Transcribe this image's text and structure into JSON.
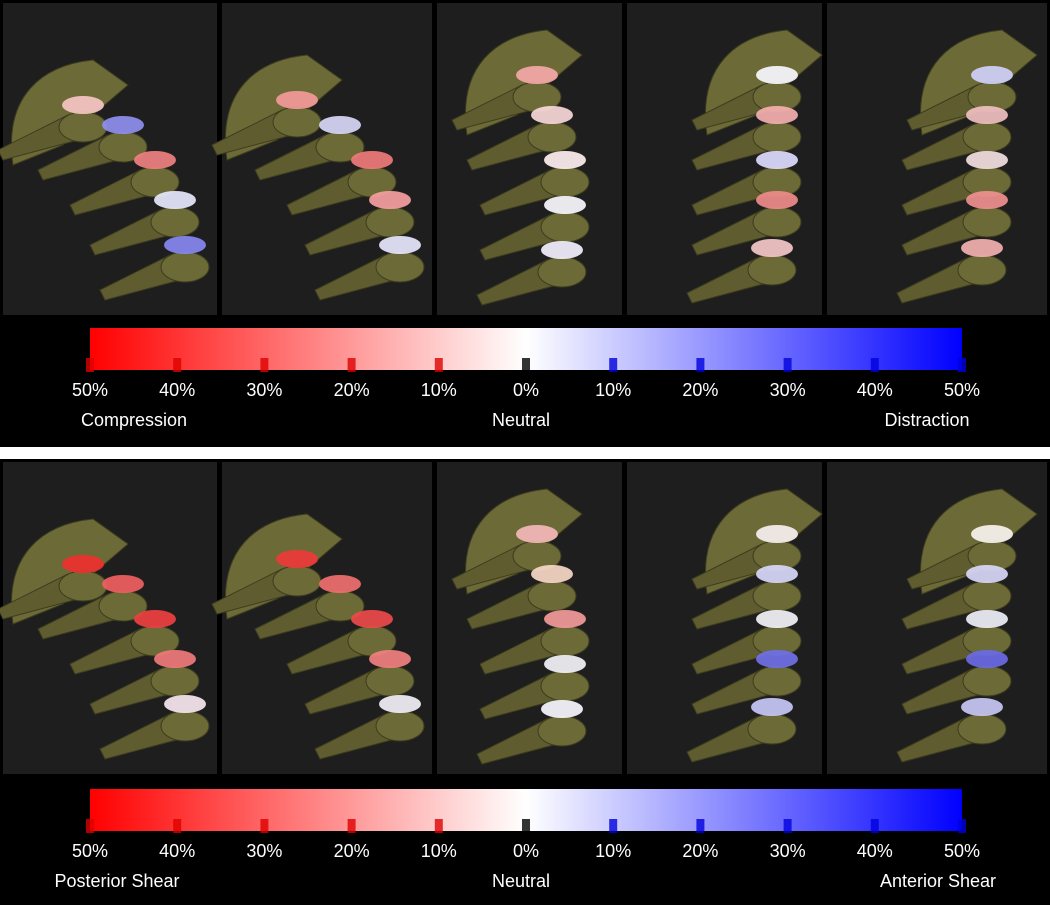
{
  "panels": [
    {
      "ticks": [
        "50%",
        "40%",
        "30%",
        "20%",
        "10%",
        "0%",
        "10%",
        "20%",
        "30%",
        "40%",
        "50%"
      ],
      "labels": {
        "left": "Compression",
        "center": "Neutral",
        "right": "Distraction"
      }
    },
    {
      "ticks": [
        "50%",
        "40%",
        "30%",
        "20%",
        "10%",
        "0%",
        "10%",
        "20%",
        "30%",
        "40%",
        "50%"
      ],
      "labels": {
        "left": "Posterior Shear",
        "center": "Neutral",
        "right": "Anterior Shear"
      }
    }
  ]
}
